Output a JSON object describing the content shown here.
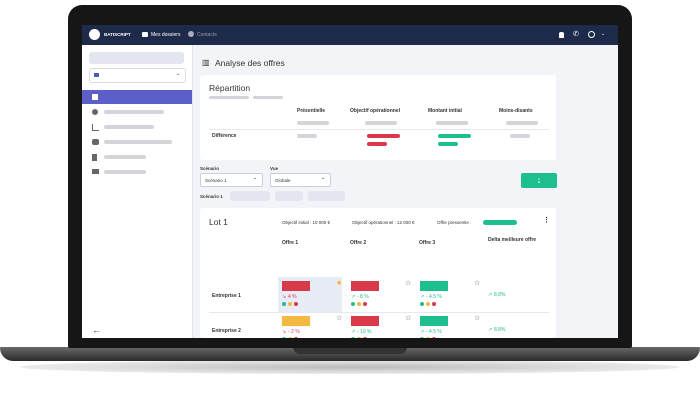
{
  "topbar": {
    "brand": "BATISCRIPT",
    "nav": [
      "Mes dossiers",
      "Contacts"
    ]
  },
  "page_title": "Analyse des offres",
  "repartition": {
    "title": "Répartition",
    "columns": [
      "Présentielle",
      "Objectif opérationnel",
      "Montant initial",
      "Moins-disants"
    ],
    "row_label": "Différence"
  },
  "filters": {
    "scenario_label": "Scénario",
    "scenario_value": "Scénario 1",
    "view_label": "Vue",
    "view_value": "Globale"
  },
  "scenario_title": "Scénario 1",
  "lot": {
    "title": "Lot 1",
    "objectif_initial": "Objectif initial : 10 000 €",
    "objectif_operationnel": "Objectif opérationnel : 12 000 €",
    "offre_pressentie": "Offre pressentie :",
    "columns": [
      "Offre 1",
      "Offre 2",
      "Offre 3",
      "Delta meilleure offre"
    ],
    "rows": [
      {
        "name": "Entreprise 1",
        "offers": [
          "4 %",
          "- 8 %",
          "- 4.5 %"
        ],
        "delta": "8,8%"
      },
      {
        "name": "Entreprise 2",
        "offers": [
          "- 2 %",
          "- 10 %",
          "- 4.5 %"
        ],
        "delta": "8.8%"
      }
    ]
  }
}
